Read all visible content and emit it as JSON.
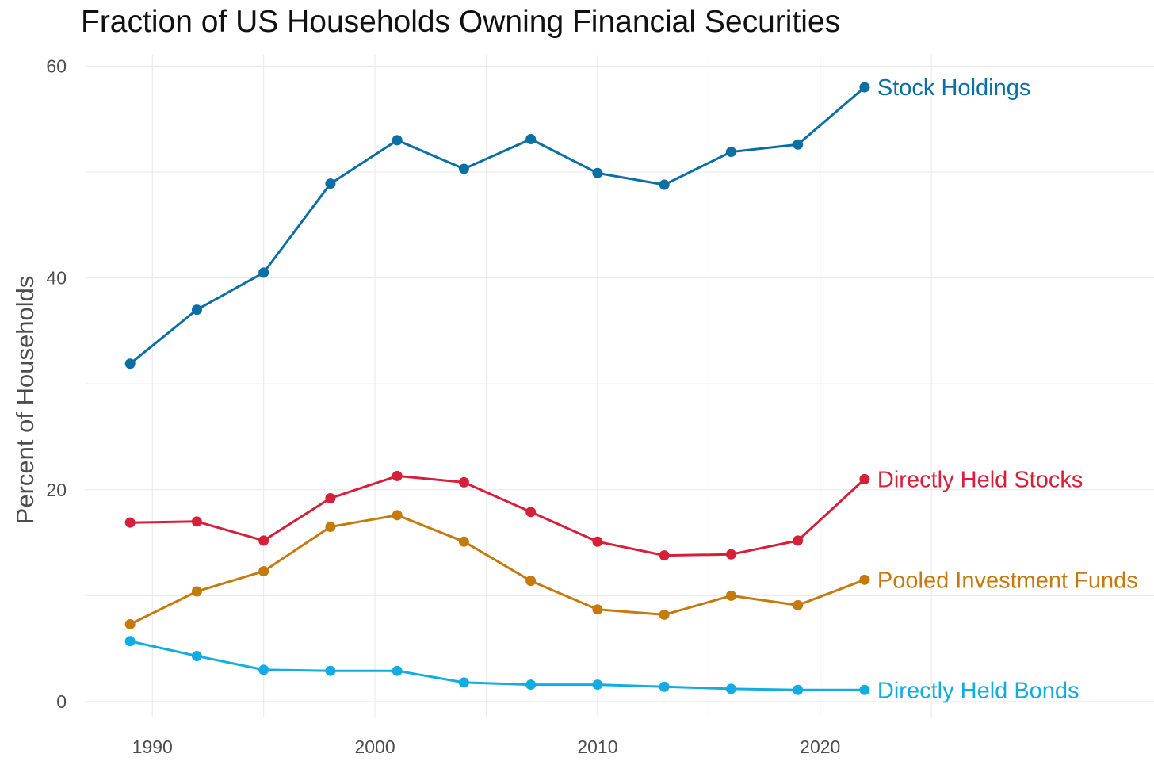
{
  "chart_data": {
    "type": "line",
    "title": "Fraction of US Households Owning Financial Securities",
    "xlabel": "",
    "ylabel": "Percent of Households",
    "xlim": [
      1987,
      2035
    ],
    "ylim": [
      -1.5,
      61
    ],
    "x_ticks": [
      1990,
      2000,
      2010,
      2020
    ],
    "y_ticks": [
      0,
      20,
      40,
      60
    ],
    "grid": true,
    "legend": "direct labels at line ends",
    "x": [
      1989,
      1992,
      1995,
      1998,
      2001,
      2004,
      2007,
      2010,
      2013,
      2016,
      2019,
      2022
    ],
    "series": [
      {
        "name": "Stock Holdings",
        "color": "#0a6fa4",
        "values": [
          31.9,
          37.0,
          40.5,
          48.9,
          53.0,
          50.3,
          53.1,
          49.9,
          48.8,
          51.9,
          52.6,
          58.0
        ]
      },
      {
        "name": "Directly Held Stocks",
        "color": "#d61f38",
        "values": [
          16.9,
          17.0,
          15.2,
          19.2,
          21.3,
          20.7,
          17.9,
          15.1,
          13.8,
          13.9,
          15.2,
          21.0
        ]
      },
      {
        "name": "Pooled Investment Funds",
        "color": "#c57a0e",
        "values": [
          7.3,
          10.4,
          12.3,
          16.5,
          17.6,
          15.1,
          11.4,
          8.7,
          8.2,
          10.0,
          9.1,
          11.5
        ]
      },
      {
        "name": "Directly Held Bonds",
        "color": "#12ace2",
        "values": [
          5.7,
          4.3,
          3.0,
          2.9,
          2.9,
          1.8,
          1.6,
          1.6,
          1.4,
          1.2,
          1.1,
          1.1
        ]
      }
    ]
  }
}
